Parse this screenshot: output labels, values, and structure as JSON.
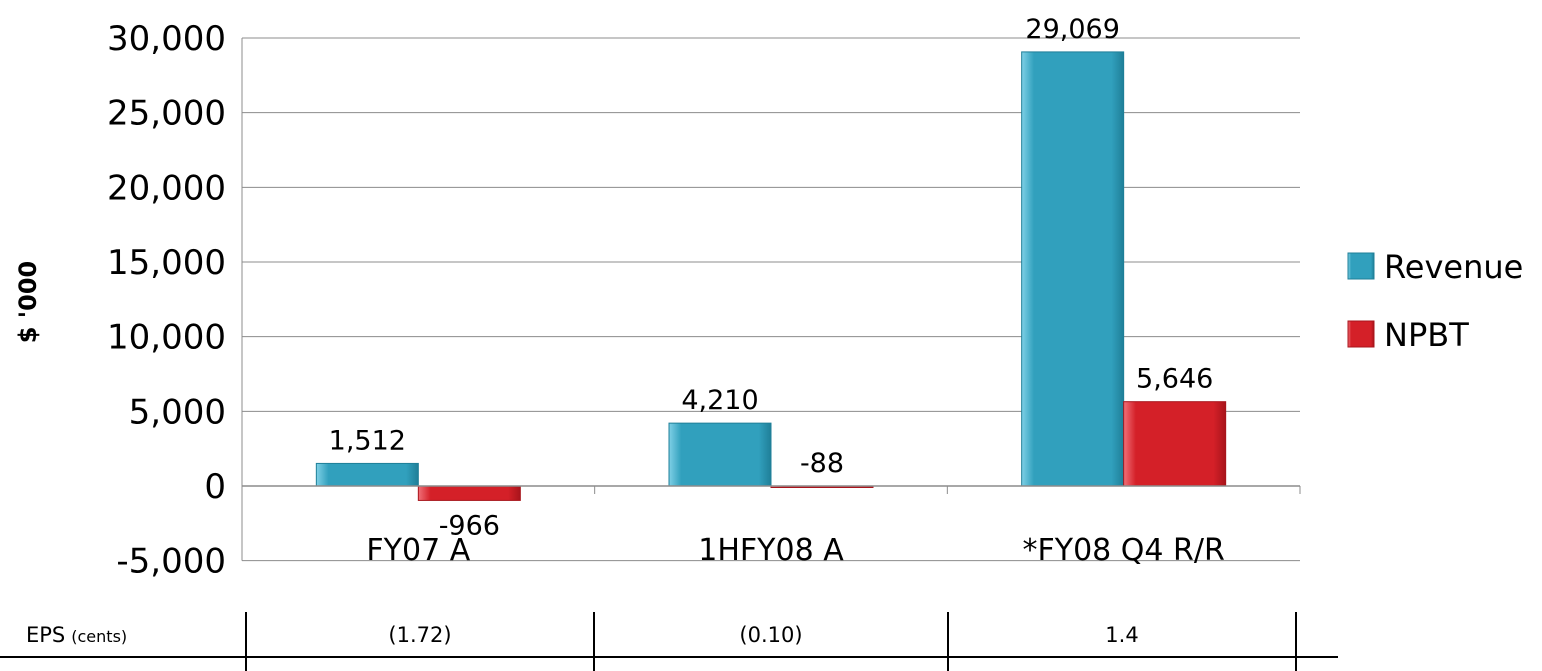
{
  "chart_data": {
    "type": "bar",
    "categories": [
      "FY07 A",
      "1HFY08 A",
      "*FY08 Q4 R/R"
    ],
    "series": [
      {
        "name": "Revenue",
        "values": [
          1512,
          4210,
          29069
        ],
        "color": "#31A0BD"
      },
      {
        "name": "NPBT",
        "values": [
          -966,
          -88,
          5646
        ],
        "color": "#D42028"
      }
    ],
    "data_labels": [
      [
        "1,512",
        "4,210",
        "29,069"
      ],
      [
        "-966",
        "-88",
        "5,646"
      ]
    ],
    "ylabel": "$ '000",
    "ylim": [
      -5000,
      30000
    ],
    "yticks": [
      -5000,
      0,
      5000,
      10000,
      15000,
      20000,
      25000,
      30000
    ],
    "ytick_labels": [
      "-5,000",
      "0",
      "5,000",
      "10,000",
      "15,000",
      "20,000",
      "25,000",
      "30,000"
    ],
    "grid": true,
    "legend_position": "right"
  },
  "eps_table": {
    "label": "EPS",
    "unit": "(cents)",
    "values": [
      "(1.72)",
      "(0.10)",
      "1.4"
    ]
  }
}
